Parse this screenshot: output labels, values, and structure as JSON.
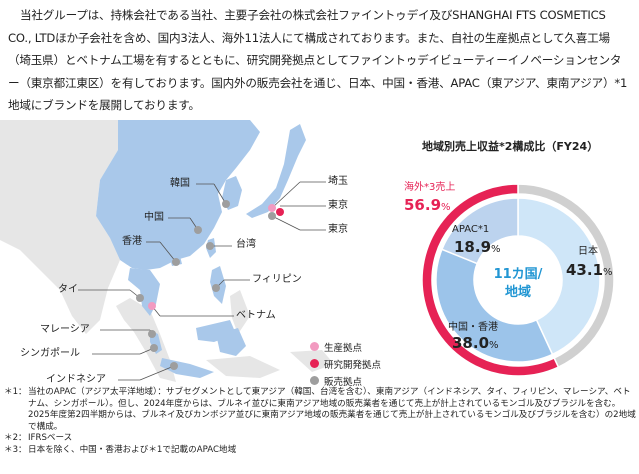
{
  "intro": {
    "text": "当社グループは、持株会社である当社、主要子会社の株式会社ファイントゥデイ及びSHANGHAI FTS COSMETICS CO., LTDほか子会社を含め、国内3法人、海外11法人にて構成されております。また、自社の生産拠点として久喜工場（埼玉県）とベトナム工場を有するとともに、研究開発拠点としてファイントゥデイビューティーイノベーションセンター（東京都江東区）を有しております。国内外の販売会社を通じ、日本、中国・香港、APAC（東アジア、東南アジア）*1地域にブランドを展開しております。"
  },
  "map": {
    "labels": {
      "korea": "韓国",
      "china": "中国",
      "hongkong": "香港",
      "taiwan": "台湾",
      "philippines": "フィリピン",
      "thailand": "タイ",
      "vietnam": "ベトナム",
      "malaysia": "マレーシア",
      "singapore": "シンガポール",
      "indonesia": "インドネシア",
      "saitama": "埼玉",
      "tokyo1": "東京",
      "tokyo2": "東京"
    },
    "colors": {
      "land_highlight": "#a9c8ea",
      "land_other": "#e6e6e6",
      "production": "#f29ac0",
      "rnd": "#e62255",
      "sales": "#9e9e9e"
    }
  },
  "legend": {
    "production": "生産拠点",
    "rnd": "研究開発拠点",
    "sales": "販売拠点"
  },
  "chart_data": {
    "type": "pie",
    "title": "地域別売上収益*2構成比（FY24）",
    "center_label": [
      "11カ国/",
      "地域"
    ],
    "slices": [
      {
        "label": "日本",
        "value": 43.1,
        "color": "#cfe6f8"
      },
      {
        "label": "中国・香港",
        "value": 38.0,
        "color": "#9cc4ea"
      },
      {
        "label": "APAC*1",
        "value": 18.9,
        "color": "#bcd3ee"
      }
    ],
    "outer_ring": [
      {
        "label": "海外*3売上",
        "value": 56.9,
        "color": "#e62255"
      },
      {
        "label": "日本",
        "value": 43.1,
        "color": "#d0d0d0"
      }
    ],
    "value_labels": {
      "japan": "43.1",
      "china": "38.0",
      "apac": "18.9",
      "overseas": "56.9"
    },
    "unit": "%"
  },
  "notes": [
    {
      "mark": "＊1：",
      "text": "当社のAPAC（アジア太平洋地域）：サブセグメントとして東アジア（韓国、台湾を含む）、東南アジア（インドネシア、タイ、フィリピン、マレーシア、ベトナム、シンガポール）。但し、2024年度からは、ブルネイ並びに東南アジア地域の販売業者を通じて売上が計上されているモンゴル及びブラジルを含む。2025年度第2四半期からは、ブルネイ及びカンボジア並びに東南アジア地域の販売業者を通じて売上が計上されているモンゴル及びブラジルを含む）の2地域で構成。"
    },
    {
      "mark": "＊2：",
      "text": "IFRSベース"
    },
    {
      "mark": "＊3：",
      "text": "日本を除く、中国・香港および＊1で記載のAPAC地域"
    }
  ]
}
